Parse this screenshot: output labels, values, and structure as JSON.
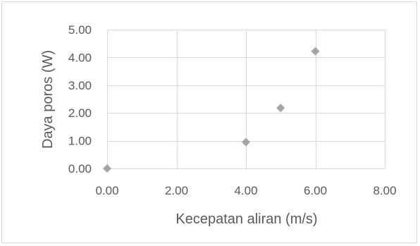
{
  "chart_data": {
    "type": "scatter",
    "title": "",
    "xlabel": "Kecepatan aliran (m/s)",
    "ylabel": "Daya poros (W)",
    "xlim": [
      0,
      8
    ],
    "ylim": [
      0,
      5
    ],
    "xticks": [
      "0.00",
      "2.00",
      "4.00",
      "6.00",
      "8.00"
    ],
    "yticks": [
      "0.00",
      "1.00",
      "2.00",
      "3.00",
      "4.00",
      "5.00"
    ],
    "grid": true,
    "legend": "none",
    "marker_color": "#a5a5a5",
    "series": [
      {
        "marker": "diamond",
        "x": [
          0,
          4,
          5,
          6
        ],
        "y": [
          0,
          0.95,
          2.18,
          4.22
        ]
      }
    ]
  }
}
